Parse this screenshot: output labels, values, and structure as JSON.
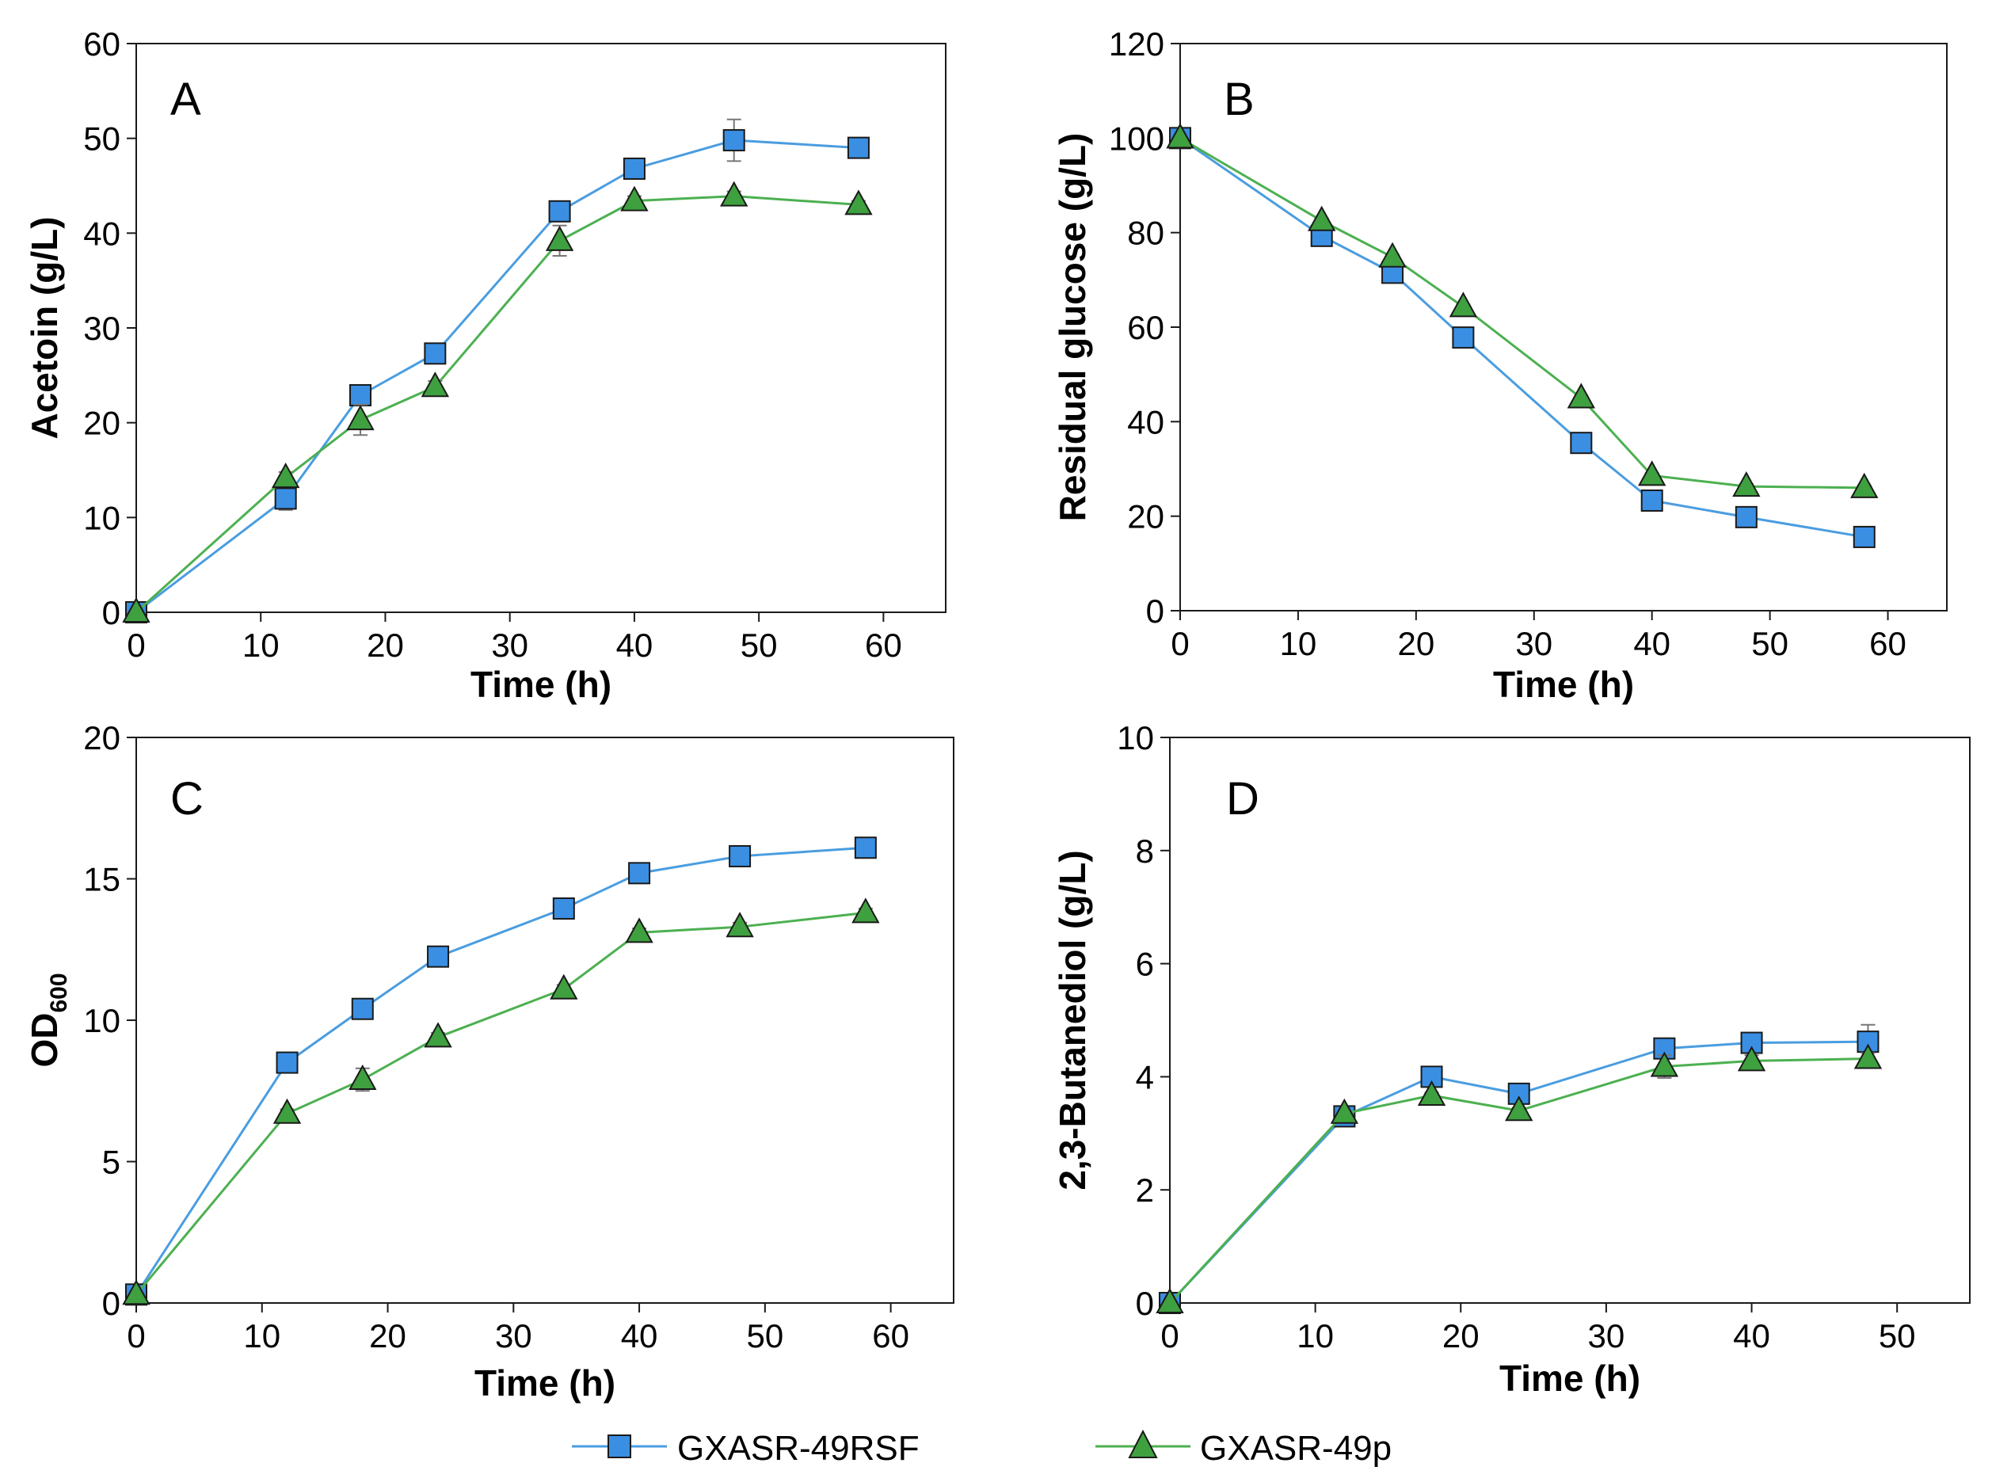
{
  "colors": {
    "series1_line": "#4a9de0",
    "series1_fill": "#3a8fe3",
    "series2_line": "#4cb050",
    "series2_fill": "#3fa03f",
    "marker_stroke": "#1a1a1a",
    "axis": "#1a1a1a"
  },
  "legend": {
    "entries": [
      {
        "name": "GXASR-49RSF",
        "marker": "square"
      },
      {
        "name": "GXASR-49p",
        "marker": "triangle"
      }
    ]
  },
  "chart_data": [
    {
      "type": "line",
      "panel": "A",
      "xlabel": "Time (h)",
      "ylabel": "Acetoin (g/L)",
      "xlim": [
        0,
        65
      ],
      "ylim": [
        0,
        60
      ],
      "xticks": [
        0,
        10,
        20,
        30,
        40,
        50,
        60
      ],
      "yticks": [
        0,
        10,
        20,
        30,
        40,
        50,
        60
      ],
      "series": [
        {
          "name": "GXASR-49RSF",
          "marker": "square",
          "x": [
            0,
            12,
            18,
            24,
            34,
            40,
            48,
            58
          ],
          "y": [
            0,
            12.0,
            22.9,
            27.3,
            42.3,
            46.8,
            49.8,
            49.0
          ],
          "err": [
            0,
            1.2,
            1.0,
            0.8,
            0.8,
            0.6,
            2.2,
            0.5
          ]
        },
        {
          "name": "GXASR-49p",
          "marker": "triangle",
          "x": [
            0,
            12,
            18,
            24,
            34,
            40,
            48,
            58
          ],
          "y": [
            0,
            14.2,
            20.3,
            23.8,
            39.2,
            43.4,
            43.9,
            43.0
          ],
          "err": [
            0,
            0.6,
            1.6,
            0.6,
            1.6,
            0.5,
            0.5,
            0.4
          ]
        }
      ]
    },
    {
      "type": "line",
      "panel": "B",
      "xlabel": "Time (h)",
      "ylabel": "Residual glucose (g/L)",
      "xlim": [
        0,
        65
      ],
      "ylim": [
        0,
        120
      ],
      "xticks": [
        0,
        10,
        20,
        30,
        40,
        50,
        60
      ],
      "yticks": [
        0,
        20,
        40,
        60,
        80,
        100,
        120
      ],
      "series": [
        {
          "name": "GXASR-49RSF",
          "marker": "square",
          "x": [
            0,
            12,
            18,
            24,
            34,
            40,
            48,
            58
          ],
          "y": [
            100,
            79.3,
            71.5,
            57.8,
            35.5,
            23.3,
            19.8,
            15.6
          ],
          "err": [
            0,
            0.5,
            0.5,
            0.5,
            0.5,
            0.5,
            0.5,
            0.5
          ]
        },
        {
          "name": "GXASR-49p",
          "marker": "triangle",
          "x": [
            0,
            12,
            18,
            24,
            34,
            40,
            48,
            58
          ],
          "y": [
            100,
            82.5,
            74.8,
            64.3,
            45.0,
            28.6,
            26.3,
            26.0
          ],
          "err": [
            0,
            0.5,
            0.5,
            0.5,
            0.5,
            0.5,
            0.5,
            0.5
          ]
        }
      ]
    },
    {
      "type": "line",
      "panel": "C",
      "xlabel": "Time (h)",
      "ylabel": "OD",
      "ylabel_sub": "600",
      "xlim": [
        0,
        65
      ],
      "ylim": [
        0,
        20
      ],
      "xticks": [
        0,
        10,
        20,
        30,
        40,
        50,
        60
      ],
      "yticks": [
        0,
        5,
        10,
        15,
        20
      ],
      "series": [
        {
          "name": "GXASR-49RSF",
          "marker": "square",
          "x": [
            0,
            12,
            18,
            24,
            34,
            40,
            48,
            58
          ],
          "y": [
            0.3,
            8.5,
            10.4,
            12.25,
            13.95,
            15.2,
            15.8,
            16.1
          ],
          "err": [
            0,
            0.15,
            0.15,
            0.15,
            0.15,
            0.15,
            0.15,
            0.15
          ]
        },
        {
          "name": "GXASR-49p",
          "marker": "triangle",
          "x": [
            0,
            12,
            18,
            24,
            34,
            40,
            48,
            58
          ],
          "y": [
            0.3,
            6.7,
            7.9,
            9.4,
            11.1,
            13.1,
            13.3,
            13.8
          ],
          "err": [
            0,
            0.15,
            0.4,
            0.15,
            0.15,
            0.15,
            0.15,
            0.15
          ]
        }
      ]
    },
    {
      "type": "line",
      "panel": "D",
      "xlabel": "Time (h)",
      "ylabel": "2,3-Butanediol (g/L)",
      "xlim": [
        0,
        55
      ],
      "ylim": [
        0,
        10
      ],
      "xticks": [
        0,
        10,
        20,
        30,
        40,
        50
      ],
      "yticks": [
        0,
        2,
        4,
        6,
        8,
        10
      ],
      "series": [
        {
          "name": "GXASR-49RSF",
          "marker": "square",
          "x": [
            0,
            12,
            18,
            24,
            34,
            40,
            48
          ],
          "y": [
            0,
            3.3,
            4.0,
            3.7,
            4.5,
            4.6,
            4.62
          ],
          "err": [
            0,
            0.05,
            0.05,
            0.05,
            0.08,
            0.08,
            0.3
          ]
        },
        {
          "name": "GXASR-49p",
          "marker": "triangle",
          "x": [
            0,
            12,
            18,
            24,
            34,
            40,
            48
          ],
          "y": [
            0,
            3.35,
            3.67,
            3.4,
            4.18,
            4.28,
            4.32
          ],
          "err": [
            0,
            0.05,
            0.05,
            0.05,
            0.2,
            0.1,
            0.1
          ]
        }
      ]
    }
  ]
}
